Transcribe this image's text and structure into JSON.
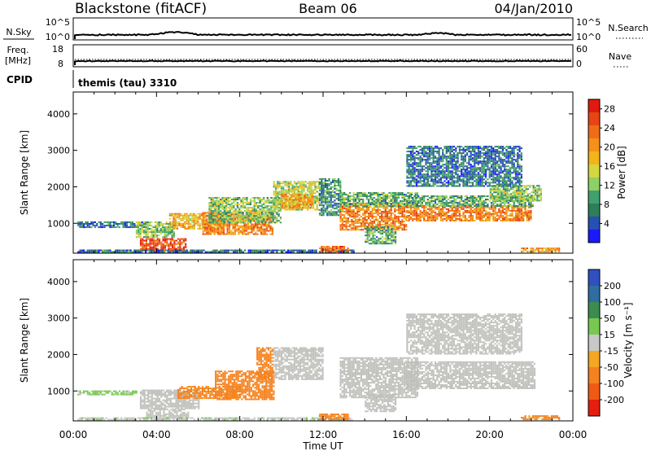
{
  "header": {
    "station": "Blackstone (fitACF)",
    "beam": "Beam 06",
    "date": "04/Jan/2010"
  },
  "strips": {
    "nsky_label": "N.Sky",
    "nsearch_label": "N.Search",
    "noise_ticks": [
      "10^5",
      "10^0"
    ],
    "freq_label": "Freq.",
    "freq_unit": "[MHz]",
    "freq_ticks": [
      "18",
      "8"
    ],
    "nave_label": "Nave",
    "nave_ticks": [
      "60",
      "0"
    ],
    "cpid_label": "CPID",
    "cpid_value": "themis (tau) 3310"
  },
  "chart_data": [
    {
      "type": "heatmap",
      "panel": "power",
      "xlabel": "Time UT",
      "ylabel": "Slant Range [km]",
      "x_ticks": [
        "00:00",
        "04:00",
        "08:00",
        "12:00",
        "16:00",
        "20:00",
        "00:00"
      ],
      "x_range_hours": [
        0,
        24
      ],
      "ylim": [
        180,
        4600
      ],
      "y_ticks": [
        1000,
        2000,
        3000,
        4000
      ],
      "colorbar": {
        "label": "Power [dB]",
        "ticks": [
          4,
          8,
          12,
          16,
          20,
          24,
          28
        ],
        "range": [
          0,
          30
        ],
        "colors": [
          "#1a1aff",
          "#2650b4",
          "#2e7e5a",
          "#41a06e",
          "#8ed064",
          "#d6d63e",
          "#f2b418",
          "#f59019",
          "#f06c16",
          "#e84414",
          "#e01a0e"
        ]
      },
      "regions": [
        {
          "t0": 0.2,
          "t1": 3.5,
          "r0": 870,
          "r1": 1020,
          "value": 6
        },
        {
          "t0": 3.0,
          "t1": 4.8,
          "r0": 600,
          "r1": 1050,
          "value": 12
        },
        {
          "t0": 3.2,
          "t1": 5.4,
          "r0": 230,
          "r1": 560,
          "value": 26
        },
        {
          "t0": 4.6,
          "t1": 7.2,
          "r0": 830,
          "r1": 1250,
          "value": 18
        },
        {
          "t0": 6.2,
          "t1": 9.6,
          "r0": 680,
          "r1": 1300,
          "value": 22
        },
        {
          "t0": 6.5,
          "t1": 10.0,
          "r0": 1000,
          "r1": 1700,
          "value": 12
        },
        {
          "t0": 9.6,
          "t1": 11.8,
          "r0": 1350,
          "r1": 2150,
          "value": 14
        },
        {
          "t0": 10.0,
          "t1": 11.5,
          "r0": 1400,
          "r1": 1800,
          "value": 20
        },
        {
          "t0": 11.8,
          "t1": 12.8,
          "r0": 1200,
          "r1": 2200,
          "value": 8
        },
        {
          "t0": 12.8,
          "t1": 16.0,
          "r0": 800,
          "r1": 1550,
          "value": 22
        },
        {
          "t0": 12.8,
          "t1": 16.5,
          "r0": 1450,
          "r1": 1850,
          "value": 10
        },
        {
          "t0": 16.0,
          "t1": 22.0,
          "r0": 1050,
          "r1": 1500,
          "value": 22
        },
        {
          "t0": 16.0,
          "t1": 22.2,
          "r0": 1450,
          "r1": 1750,
          "value": 10
        },
        {
          "t0": 20.0,
          "t1": 22.5,
          "r0": 1600,
          "r1": 2050,
          "value": 12
        },
        {
          "t0": 14.0,
          "t1": 15.5,
          "r0": 420,
          "r1": 900,
          "value": 10
        },
        {
          "t0": 0.2,
          "t1": 13.5,
          "r0": 190,
          "r1": 280,
          "value": 6
        },
        {
          "t0": 11.8,
          "t1": 13.2,
          "r0": 200,
          "r1": 380,
          "value": 24
        },
        {
          "t0": 21.5,
          "t1": 23.3,
          "r0": 200,
          "r1": 320,
          "value": 20
        },
        {
          "t0": 16.0,
          "t1": 21.5,
          "r0": 2000,
          "r1": 3100,
          "value": 6
        }
      ]
    },
    {
      "type": "heatmap",
      "panel": "velocity",
      "xlabel": "Time UT",
      "ylabel": "Slant Range [km]",
      "x_ticks": [
        "00:00",
        "04:00",
        "08:00",
        "12:00",
        "16:00",
        "20:00",
        "00:00"
      ],
      "x_range_hours": [
        0,
        24
      ],
      "ylim": [
        180,
        4600
      ],
      "y_ticks": [
        1000,
        2000,
        3000,
        4000
      ],
      "colorbar": {
        "label": "Velocity [m s⁻¹]",
        "ticks": [
          "200",
          "100",
          "50",
          "15",
          "-15",
          "-50",
          "-100",
          "-200"
        ],
        "colors": [
          "#3050c0",
          "#2e6ea0",
          "#3c8c50",
          "#78c850",
          "#c8c8c8",
          "#f5a623",
          "#f5821e",
          "#f05a14",
          "#e61e10"
        ]
      },
      "ground_scatter_color": "#c0c0bc",
      "regions": [
        {
          "t0": 3.2,
          "t1": 6.0,
          "r0": 500,
          "r1": 1000,
          "value": "gs"
        },
        {
          "t0": 3.5,
          "t1": 5.5,
          "r0": 250,
          "r1": 500,
          "value": "gs"
        },
        {
          "t0": 5.0,
          "t1": 8.0,
          "r0": 780,
          "r1": 1100,
          "value": -40
        },
        {
          "t0": 6.8,
          "t1": 9.6,
          "r0": 750,
          "r1": 1550,
          "value": -60
        },
        {
          "t0": 8.8,
          "t1": 9.6,
          "r0": 1300,
          "r1": 2200,
          "value": -45
        },
        {
          "t0": 9.6,
          "t1": 12.0,
          "r0": 1300,
          "r1": 2200,
          "value": "gs"
        },
        {
          "t0": 12.8,
          "t1": 16.5,
          "r0": 800,
          "r1": 1900,
          "value": "gs"
        },
        {
          "t0": 16.0,
          "t1": 22.2,
          "r0": 1050,
          "r1": 1800,
          "value": "gs"
        },
        {
          "t0": 14.0,
          "t1": 15.5,
          "r0": 420,
          "r1": 900,
          "value": "gs"
        },
        {
          "t0": 0.2,
          "t1": 13.5,
          "r0": 190,
          "r1": 280,
          "value": 10
        },
        {
          "t0": 11.8,
          "t1": 13.2,
          "r0": 200,
          "r1": 380,
          "value": -40
        },
        {
          "t0": 21.5,
          "t1": 23.3,
          "r0": 200,
          "r1": 320,
          "value": -40
        },
        {
          "t0": 0.2,
          "t1": 3.0,
          "r0": 880,
          "r1": 1000,
          "value": 20
        },
        {
          "t0": 16.0,
          "t1": 21.5,
          "r0": 2000,
          "r1": 3100,
          "value": "gs"
        }
      ]
    }
  ]
}
